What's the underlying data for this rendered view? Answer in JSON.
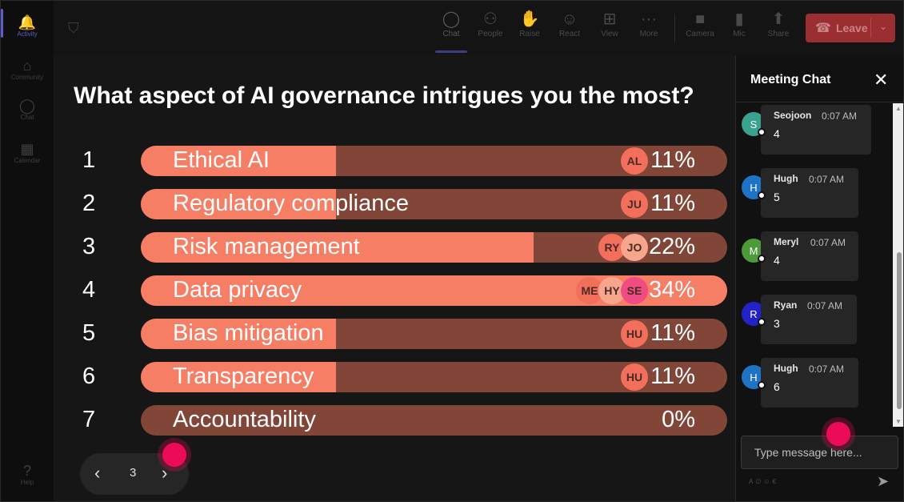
{
  "rail": {
    "items": [
      {
        "label": "Activity",
        "icon": "bell-icon"
      },
      {
        "label": "Community",
        "icon": "community-icon"
      },
      {
        "label": "Chat",
        "icon": "chat-icon"
      },
      {
        "label": "Calendar",
        "icon": "calendar-icon"
      },
      {
        "label": "Help",
        "icon": "help-icon"
      }
    ]
  },
  "toolbar": {
    "chat": "Chat",
    "people": "People",
    "raise": "Raise",
    "react": "React",
    "view": "View",
    "more": "More",
    "camera": "Camera",
    "mic": "Mic",
    "share": "Share",
    "leave": "Leave"
  },
  "poll": {
    "question": "What aspect of AI governance intrigues you the most?",
    "options": [
      {
        "num": "1",
        "label": "Ethical AI",
        "pct": "11%",
        "fraction": 0.33,
        "voters": [
          "AL"
        ]
      },
      {
        "num": "2",
        "label": "Regulatory compliance",
        "pct": "11%",
        "fraction": 0.33,
        "voters": [
          "JU"
        ]
      },
      {
        "num": "3",
        "label": "Risk management",
        "pct": "22%",
        "fraction": 0.67,
        "voters": [
          "RY",
          "JO"
        ]
      },
      {
        "num": "4",
        "label": "Data privacy",
        "pct": "34%",
        "fraction": 1.0,
        "voters": [
          "ME",
          "HY",
          "SE"
        ]
      },
      {
        "num": "5",
        "label": "Bias mitigation",
        "pct": "11%",
        "fraction": 0.33,
        "voters": [
          "HU"
        ]
      },
      {
        "num": "6",
        "label": "Transparency",
        "pct": "11%",
        "fraction": 0.33,
        "voters": [
          "HU"
        ]
      },
      {
        "num": "7",
        "label": "Accountability",
        "pct": "0%",
        "fraction": 0.0,
        "voters": []
      }
    ],
    "colors": {
      "fill": "#f67e65",
      "track": "#824638"
    },
    "pager": {
      "prev": "‹",
      "page": "3",
      "next": "›"
    }
  },
  "chat": {
    "title": "Meeting Chat",
    "close": "✕",
    "messages": [
      {
        "initial": "S",
        "name": "Seojoon",
        "time": "0:07 AM",
        "text": "4",
        "color": "#3aa38f"
      },
      {
        "initial": "H",
        "name": "Hugh",
        "time": "0:07 AM",
        "text": "5",
        "color": "#1e73c4"
      },
      {
        "initial": "M",
        "name": "Meryl",
        "time": "0:07 AM",
        "text": "4",
        "color": "#4c9a3a"
      },
      {
        "initial": "R",
        "name": "Ryan",
        "time": "0:07 AM",
        "text": "3",
        "color": "#2222c8"
      },
      {
        "initial": "H",
        "name": "Hugh",
        "time": "0:07 AM",
        "text": "6",
        "color": "#1e73c4"
      }
    ],
    "input_placeholder": "Type message here...",
    "send_icon": "send-icon"
  }
}
